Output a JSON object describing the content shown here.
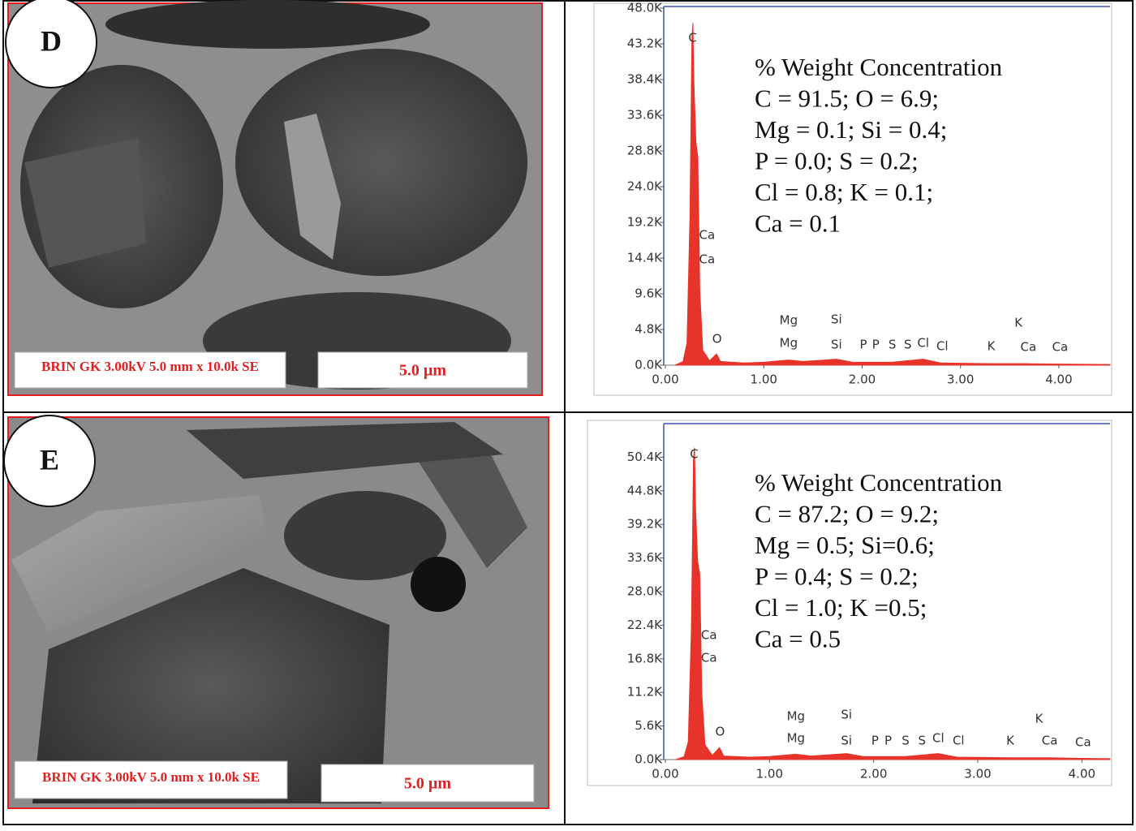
{
  "panels": [
    {
      "label": "D",
      "caption": "BRIN GK 3.00kV 5.0 mm x 10.0k SE",
      "scale_bar": "5.0 µm"
    },
    {
      "label": "E",
      "caption": "BRIN GK 3.00kV 5.0 mm x 10.0k SE",
      "scale_bar": "5.0 µm"
    }
  ],
  "chart_data": [
    {
      "type": "area",
      "color": "#e8332a",
      "title": "% Weight Concentration",
      "annotations": [
        "C = 91.5; O = 6.9;",
        "Mg = 0.1; Si = 0.4;",
        "P = 0.0; S = 0.2;",
        "Cl = 0.8; K = 0.1;",
        "Ca = 0.1"
      ],
      "x": [
        0.1,
        0.18,
        0.22,
        0.25,
        0.27,
        0.28,
        0.29,
        0.31,
        0.33,
        0.35,
        0.38,
        0.45,
        0.52,
        0.56,
        0.8,
        1.0,
        1.25,
        1.4,
        1.74,
        1.9,
        2.3,
        2.62,
        2.8,
        3.31,
        3.69,
        4.0,
        4.52
      ],
      "values": [
        0,
        500,
        3000,
        20000,
        44000,
        46000,
        38000,
        30000,
        28000,
        10000,
        2000,
        600,
        1500,
        500,
        300,
        400,
        700,
        500,
        800,
        400,
        400,
        800,
        300,
        200,
        200,
        150,
        100
      ],
      "peak_labels": [
        {
          "label": "C",
          "x": 0.277
        },
        {
          "label": "Ca",
          "x": 0.341
        },
        {
          "label": "Ca",
          "x": 0.341
        },
        {
          "label": "O",
          "x": 0.525
        },
        {
          "label": "Mg",
          "x": 1.253
        },
        {
          "label": "Mg",
          "x": 1.253
        },
        {
          "label": "Si",
          "x": 1.739
        },
        {
          "label": "Si",
          "x": 1.739
        },
        {
          "label": "P",
          "x": 2.013
        },
        {
          "label": "P",
          "x": 2.139
        },
        {
          "label": "S",
          "x": 2.307
        },
        {
          "label": "S",
          "x": 2.464
        },
        {
          "label": "Cl",
          "x": 2.621
        },
        {
          "label": "Cl",
          "x": 2.815
        },
        {
          "label": "K",
          "x": 3.312
        },
        {
          "label": "K",
          "x": 3.589
        },
        {
          "label": "Ca",
          "x": 3.69
        },
        {
          "label": "Ca",
          "x": 4.012
        }
      ],
      "xlim": [
        0,
        4.52
      ],
      "ylim": [
        0,
        48000
      ],
      "xticks": [
        {
          "value": 0,
          "label": "0.00"
        },
        {
          "value": 1,
          "label": "1.00"
        },
        {
          "value": 2,
          "label": "2.00"
        },
        {
          "value": 3,
          "label": "3.00"
        },
        {
          "value": 4,
          "label": "4.00"
        }
      ],
      "yticks": [
        {
          "value": 0,
          "label": "0.0K"
        },
        {
          "value": 4800,
          "label": "4.8K"
        },
        {
          "value": 9600,
          "label": "9.6K"
        },
        {
          "value": 14400,
          "label": "14.4K"
        },
        {
          "value": 19200,
          "label": "19.2K"
        },
        {
          "value": 24000,
          "label": "24.0K"
        },
        {
          "value": 28800,
          "label": "28.8K"
        },
        {
          "value": 33600,
          "label": "33.6K"
        },
        {
          "value": 38400,
          "label": "38.4K"
        },
        {
          "value": 43200,
          "label": "43.2K"
        },
        {
          "value": 48000,
          "label": "48.0K"
        }
      ]
    },
    {
      "type": "area",
      "color": "#e8332a",
      "title": "% Weight Concentration",
      "annotations": [
        "C = 87.2; O = 9.2;",
        "Mg = 0.5; Si=0.6;",
        "P = 0.4; S = 0.2;",
        "Cl = 1.0; K =0.5;",
        "Ca = 0.5"
      ],
      "x": [
        0.1,
        0.18,
        0.22,
        0.25,
        0.27,
        0.28,
        0.29,
        0.31,
        0.33,
        0.35,
        0.38,
        0.45,
        0.52,
        0.56,
        0.8,
        1.0,
        1.25,
        1.4,
        1.74,
        1.9,
        2.3,
        2.62,
        2.8,
        3.31,
        3.69,
        4.0,
        4.27
      ],
      "values": [
        0,
        500,
        3000,
        22000,
        50000,
        52000,
        42000,
        33000,
        31000,
        11000,
        2500,
        700,
        2000,
        600,
        400,
        500,
        900,
        600,
        1000,
        500,
        500,
        1000,
        400,
        300,
        300,
        200,
        150
      ],
      "peak_labels": [
        {
          "label": "C",
          "x": 0.277
        },
        {
          "label": "Ca",
          "x": 0.341
        },
        {
          "label": "Ca",
          "x": 0.341
        },
        {
          "label": "O",
          "x": 0.525
        },
        {
          "label": "Mg",
          "x": 1.253
        },
        {
          "label": "Mg",
          "x": 1.253
        },
        {
          "label": "Si",
          "x": 1.739
        },
        {
          "label": "Si",
          "x": 1.739
        },
        {
          "label": "P",
          "x": 2.013
        },
        {
          "label": "P",
          "x": 2.139
        },
        {
          "label": "S",
          "x": 2.307
        },
        {
          "label": "S",
          "x": 2.464
        },
        {
          "label": "Cl",
          "x": 2.621
        },
        {
          "label": "Cl",
          "x": 2.815
        },
        {
          "label": "K",
          "x": 3.312
        },
        {
          "label": "K",
          "x": 3.589
        },
        {
          "label": "Ca",
          "x": 3.69
        },
        {
          "label": "Ca",
          "x": 4.012
        }
      ],
      "xlim": [
        0,
        4.27
      ],
      "ylim": [
        0,
        56000
      ],
      "xticks": [
        {
          "value": 0,
          "label": "0.00"
        },
        {
          "value": 1,
          "label": "1.00"
        },
        {
          "value": 2,
          "label": "2.00"
        },
        {
          "value": 3,
          "label": "3.00"
        },
        {
          "value": 4,
          "label": "4.00"
        }
      ],
      "yticks": [
        {
          "value": 0,
          "label": "0.0K"
        },
        {
          "value": 5600,
          "label": "5.6K"
        },
        {
          "value": 11200,
          "label": "11.2K"
        },
        {
          "value": 16800,
          "label": "16.8K"
        },
        {
          "value": 22400,
          "label": "22.4K"
        },
        {
          "value": 28000,
          "label": "28.0K"
        },
        {
          "value": 33600,
          "label": "33.6K"
        },
        {
          "value": 39200,
          "label": "39.2K"
        },
        {
          "value": 44800,
          "label": "44.8K"
        },
        {
          "value": 50400,
          "label": "50.4K"
        }
      ]
    }
  ]
}
